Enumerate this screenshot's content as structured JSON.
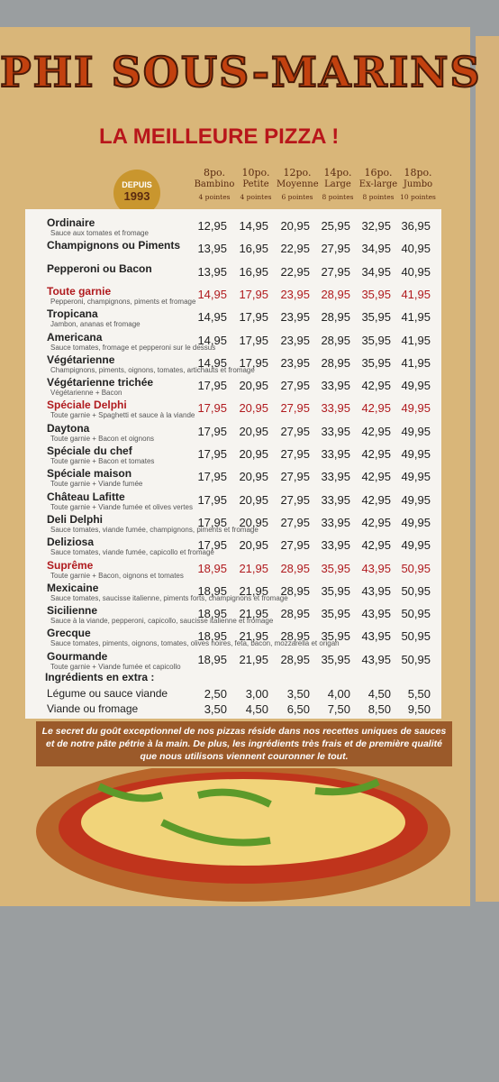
{
  "header": {
    "title": "PHI SOUS-MARINS",
    "subtitle": "LA MEILLEURE PIZZA !",
    "badge_top": "DEPUIS",
    "badge_year": "1993"
  },
  "sizes": [
    {
      "inch": "8po.",
      "name": "Bambino",
      "slices": "4 pointes"
    },
    {
      "inch": "10po.",
      "name": "Petite",
      "slices": "4 pointes"
    },
    {
      "inch": "12po.",
      "name": "Moyenne",
      "slices": "6 pointes"
    },
    {
      "inch": "14po.",
      "name": "Large",
      "slices": "8 pointes"
    },
    {
      "inch": "16po.",
      "name": "Ex-large",
      "slices": "8 pointes"
    },
    {
      "inch": "18po.",
      "name": "Jumbo",
      "slices": "10 pointes"
    }
  ],
  "items": [
    {
      "name": "Ordinaire",
      "desc": "Sauce aux tomates et fromage",
      "prices": [
        "12,95",
        "14,95",
        "20,95",
        "25,95",
        "32,95",
        "36,95"
      ]
    },
    {
      "name": "Champignons ou Piments",
      "prices": [
        "13,95",
        "16,95",
        "22,95",
        "27,95",
        "34,95",
        "40,95"
      ]
    },
    {
      "name": "Pepperoni ou Bacon",
      "prices": [
        "13,95",
        "16,95",
        "22,95",
        "27,95",
        "34,95",
        "40,95"
      ]
    },
    {
      "name": "Toute garnie",
      "desc": "Pepperoni, champignons, piments et fromage",
      "color": "#b01a1e",
      "prices": [
        "14,95",
        "17,95",
        "23,95",
        "28,95",
        "35,95",
        "41,95"
      ]
    },
    {
      "name": "Tropicana",
      "desc": "Jambon, ananas et fromage",
      "prices": [
        "14,95",
        "17,95",
        "23,95",
        "28,95",
        "35,95",
        "41,95"
      ]
    },
    {
      "name": "Americana",
      "desc": "Sauce tomates, fromage et pepperoni sur le dessus",
      "prices": [
        "14,95",
        "17,95",
        "23,95",
        "28,95",
        "35,95",
        "41,95"
      ]
    },
    {
      "name": "Végétarienne",
      "desc": "Champignons, piments, oignons, tomates, artichauts et fromage",
      "prices": [
        "14,95",
        "17,95",
        "23,95",
        "28,95",
        "35,95",
        "41,95"
      ]
    },
    {
      "name": "Végétarienne trichée",
      "desc": "Végétarienne + Bacon",
      "prices": [
        "17,95",
        "20,95",
        "27,95",
        "33,95",
        "42,95",
        "49,95"
      ]
    },
    {
      "name": "Spéciale Delphi",
      "desc": "Toute garnie + Spaghetti et sauce à la viande",
      "color": "#b01a1e",
      "prices": [
        "17,95",
        "20,95",
        "27,95",
        "33,95",
        "42,95",
        "49,95"
      ]
    },
    {
      "name": "Daytona",
      "desc": "Toute garnie + Bacon et oignons",
      "prices": [
        "17,95",
        "20,95",
        "27,95",
        "33,95",
        "42,95",
        "49,95"
      ]
    },
    {
      "name": "Spéciale du chef",
      "desc": "Toute garnie + Bacon et tomates",
      "prices": [
        "17,95",
        "20,95",
        "27,95",
        "33,95",
        "42,95",
        "49,95"
      ]
    },
    {
      "name": "Spéciale maison",
      "desc": "Toute garnie + Viande fumée",
      "prices": [
        "17,95",
        "20,95",
        "27,95",
        "33,95",
        "42,95",
        "49,95"
      ]
    },
    {
      "name": "Château Lafitte",
      "desc": "Toute garnie + Viande fumée et olives vertes",
      "prices": [
        "17,95",
        "20,95",
        "27,95",
        "33,95",
        "42,95",
        "49,95"
      ]
    },
    {
      "name": "Deli Delphi",
      "desc": "Sauce tomates, viande fumée, champignons, piments et fromage",
      "prices": [
        "17,95",
        "20,95",
        "27,95",
        "33,95",
        "42,95",
        "49,95"
      ]
    },
    {
      "name": "Deliziosa",
      "desc": "Sauce tomates, viande fumée, capicollo et fromage",
      "prices": [
        "17,95",
        "20,95",
        "27,95",
        "33,95",
        "42,95",
        "49,95"
      ]
    },
    {
      "name": "Suprême",
      "desc": "Toute garnie + Bacon, oignons et tomates",
      "color": "#b01a1e",
      "prices": [
        "18,95",
        "21,95",
        "28,95",
        "35,95",
        "43,95",
        "50,95"
      ]
    },
    {
      "name": "Mexicaine",
      "desc": "Sauce tomates, saucisse italienne, piments forts, champignons et fromage",
      "prices": [
        "18,95",
        "21,95",
        "28,95",
        "35,95",
        "43,95",
        "50,95"
      ]
    },
    {
      "name": "Sicilienne",
      "desc": "Sauce à la viande, pepperoni, capicollo, saucisse italienne et fromage",
      "prices": [
        "18,95",
        "21,95",
        "28,95",
        "35,95",
        "43,95",
        "50,95"
      ]
    },
    {
      "name": "Grecque",
      "desc": "Sauce tomates, piments, oignons, tomates, olives noires, feta, bacon, mozzarella et origan",
      "prices": [
        "18,95",
        "21,95",
        "28,95",
        "35,95",
        "43,95",
        "50,95"
      ]
    },
    {
      "name": "Gourmande",
      "desc": "Toute garnie + Viande fumée et capicollo",
      "prices": [
        "18,95",
        "21,95",
        "28,95",
        "35,95",
        "43,95",
        "50,95"
      ]
    }
  ],
  "extras": {
    "title": "Ingrédients en extra :",
    "rows": [
      {
        "name": "Légume ou sauce viande",
        "prices": [
          "2,50",
          "3,00",
          "3,50",
          "4,00",
          "4,50",
          "5,50"
        ]
      },
      {
        "name": "Viande ou fromage",
        "prices": [
          "3,50",
          "4,50",
          "6,50",
          "7,50",
          "8,50",
          "9,50"
        ]
      }
    ]
  },
  "footer": "Le secret du goût exceptionnel de nos pizzas réside dans nos recettes uniques de sauces et de notre pâte pétrie à la main. De plus, les ingrédients très frais et de première qualité que nous utilisons viennent couronner le tout."
}
